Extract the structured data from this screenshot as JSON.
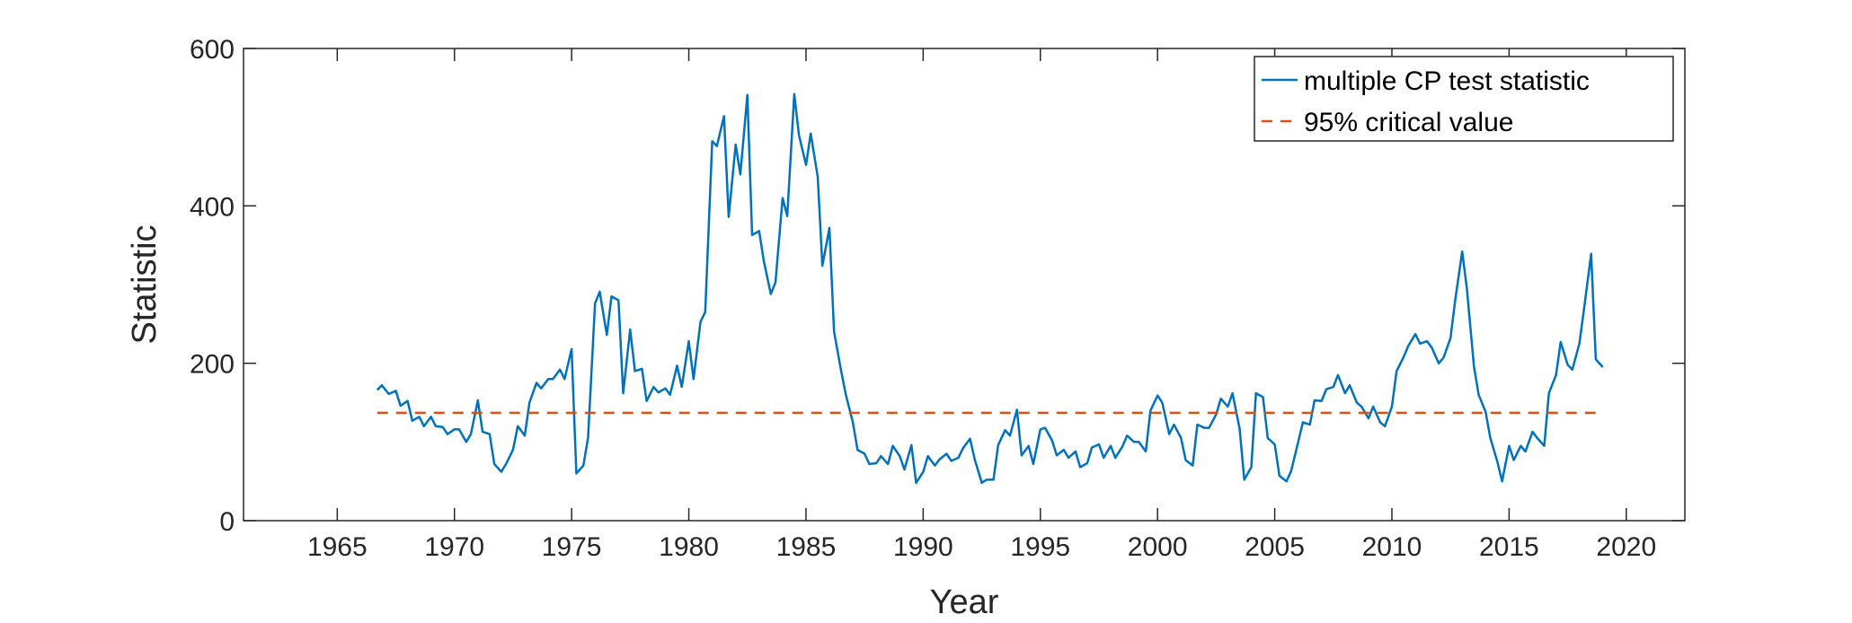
{
  "chart_data": {
    "type": "line",
    "title": "",
    "xlabel": "Year",
    "ylabel": "Statistic",
    "xlim": [
      1961,
      2022.5
    ],
    "ylim": [
      0,
      600
    ],
    "xticks": [
      1965,
      1970,
      1975,
      1980,
      1985,
      1990,
      1995,
      2000,
      2005,
      2010,
      2015,
      2020
    ],
    "yticks": [
      0,
      200,
      400,
      600
    ],
    "grid": false,
    "legend_position": "top-right",
    "series": [
      {
        "name": "multiple CP test statistic",
        "color": "#0072BD",
        "style": "solid",
        "points": [
          [
            1966.7,
            166
          ],
          [
            1966.9,
            172
          ],
          [
            1967.2,
            161
          ],
          [
            1967.5,
            165
          ],
          [
            1967.7,
            146
          ],
          [
            1968.0,
            152
          ],
          [
            1968.2,
            127
          ],
          [
            1968.5,
            132
          ],
          [
            1968.7,
            120
          ],
          [
            1969.0,
            132
          ],
          [
            1969.2,
            120
          ],
          [
            1969.5,
            119
          ],
          [
            1969.7,
            110
          ],
          [
            1970.0,
            116
          ],
          [
            1970.2,
            116
          ],
          [
            1970.5,
            100
          ],
          [
            1970.7,
            110
          ],
          [
            1971.0,
            153
          ],
          [
            1971.2,
            113
          ],
          [
            1971.5,
            110
          ],
          [
            1971.7,
            72
          ],
          [
            1972.0,
            62
          ],
          [
            1972.2,
            72
          ],
          [
            1972.5,
            90
          ],
          [
            1972.7,
            120
          ],
          [
            1973.0,
            108
          ],
          [
            1973.2,
            150
          ],
          [
            1973.5,
            175
          ],
          [
            1973.7,
            168
          ],
          [
            1974.0,
            180
          ],
          [
            1974.2,
            180
          ],
          [
            1974.5,
            192
          ],
          [
            1974.7,
            180
          ],
          [
            1975.0,
            218
          ],
          [
            1975.2,
            60
          ],
          [
            1975.5,
            70
          ],
          [
            1975.7,
            105
          ],
          [
            1976.0,
            276
          ],
          [
            1976.2,
            291
          ],
          [
            1976.5,
            236
          ],
          [
            1976.7,
            285
          ],
          [
            1977.0,
            280
          ],
          [
            1977.2,
            162
          ],
          [
            1977.5,
            243
          ],
          [
            1977.7,
            190
          ],
          [
            1978.0,
            193
          ],
          [
            1978.2,
            152
          ],
          [
            1978.5,
            170
          ],
          [
            1978.7,
            163
          ],
          [
            1979.0,
            168
          ],
          [
            1979.2,
            160
          ],
          [
            1979.5,
            197
          ],
          [
            1979.7,
            170
          ],
          [
            1980.0,
            228
          ],
          [
            1980.2,
            180
          ],
          [
            1980.5,
            253
          ],
          [
            1980.7,
            265
          ],
          [
            1981.0,
            482
          ],
          [
            1981.2,
            476
          ],
          [
            1981.5,
            514
          ],
          [
            1981.7,
            386
          ],
          [
            1982.0,
            478
          ],
          [
            1982.2,
            440
          ],
          [
            1982.5,
            541
          ],
          [
            1982.7,
            363
          ],
          [
            1983.0,
            368
          ],
          [
            1983.2,
            330
          ],
          [
            1983.5,
            288
          ],
          [
            1983.7,
            303
          ],
          [
            1984.0,
            410
          ],
          [
            1984.2,
            387
          ],
          [
            1984.5,
            542
          ],
          [
            1984.7,
            490
          ],
          [
            1985.0,
            452
          ],
          [
            1985.2,
            492
          ],
          [
            1985.5,
            437
          ],
          [
            1985.7,
            324
          ],
          [
            1986.0,
            372
          ],
          [
            1986.2,
            240
          ],
          [
            1986.5,
            190
          ],
          [
            1986.7,
            160
          ],
          [
            1987.0,
            125
          ],
          [
            1987.2,
            90
          ],
          [
            1987.5,
            85
          ],
          [
            1987.7,
            72
          ],
          [
            1988.0,
            73
          ],
          [
            1988.2,
            82
          ],
          [
            1988.5,
            72
          ],
          [
            1988.7,
            95
          ],
          [
            1989.0,
            82
          ],
          [
            1989.2,
            65
          ],
          [
            1989.5,
            96
          ],
          [
            1989.7,
            48
          ],
          [
            1990.0,
            62
          ],
          [
            1990.2,
            82
          ],
          [
            1990.5,
            70
          ],
          [
            1990.7,
            78
          ],
          [
            1991.0,
            85
          ],
          [
            1991.2,
            76
          ],
          [
            1991.5,
            80
          ],
          [
            1991.7,
            92
          ],
          [
            1992.0,
            104
          ],
          [
            1992.2,
            78
          ],
          [
            1992.5,
            48
          ],
          [
            1992.7,
            52
          ],
          [
            1993.0,
            52
          ],
          [
            1993.2,
            96
          ],
          [
            1993.5,
            115
          ],
          [
            1993.7,
            108
          ],
          [
            1994.0,
            141
          ],
          [
            1994.2,
            83
          ],
          [
            1994.5,
            95
          ],
          [
            1994.7,
            72
          ],
          [
            1995.0,
            116
          ],
          [
            1995.2,
            118
          ],
          [
            1995.5,
            102
          ],
          [
            1995.7,
            83
          ],
          [
            1996.0,
            90
          ],
          [
            1996.2,
            80
          ],
          [
            1996.5,
            88
          ],
          [
            1996.7,
            68
          ],
          [
            1997.0,
            73
          ],
          [
            1997.2,
            93
          ],
          [
            1997.5,
            97
          ],
          [
            1997.7,
            80
          ],
          [
            1998.0,
            95
          ],
          [
            1998.2,
            80
          ],
          [
            1998.5,
            94
          ],
          [
            1998.7,
            108
          ],
          [
            1999.0,
            100
          ],
          [
            1999.2,
            100
          ],
          [
            1999.5,
            88
          ],
          [
            1999.7,
            140
          ],
          [
            2000.0,
            159
          ],
          [
            2000.2,
            150
          ],
          [
            2000.5,
            110
          ],
          [
            2000.7,
            122
          ],
          [
            2001.0,
            105
          ],
          [
            2001.2,
            77
          ],
          [
            2001.5,
            70
          ],
          [
            2001.7,
            122
          ],
          [
            2002.0,
            118
          ],
          [
            2002.2,
            118
          ],
          [
            2002.5,
            135
          ],
          [
            2002.7,
            155
          ],
          [
            2003.0,
            145
          ],
          [
            2003.2,
            162
          ],
          [
            2003.5,
            117
          ],
          [
            2003.7,
            52
          ],
          [
            2004.0,
            68
          ],
          [
            2004.2,
            162
          ],
          [
            2004.5,
            157
          ],
          [
            2004.7,
            105
          ],
          [
            2005.0,
            97
          ],
          [
            2005.2,
            57
          ],
          [
            2005.5,
            50
          ],
          [
            2005.7,
            63
          ],
          [
            2006.0,
            100
          ],
          [
            2006.2,
            125
          ],
          [
            2006.5,
            122
          ],
          [
            2006.7,
            153
          ],
          [
            2007.0,
            152
          ],
          [
            2007.2,
            167
          ],
          [
            2007.5,
            170
          ],
          [
            2007.7,
            185
          ],
          [
            2008.0,
            162
          ],
          [
            2008.2,
            172
          ],
          [
            2008.5,
            150
          ],
          [
            2008.7,
            145
          ],
          [
            2009.0,
            130
          ],
          [
            2009.2,
            145
          ],
          [
            2009.5,
            125
          ],
          [
            2009.7,
            120
          ],
          [
            2010.0,
            145
          ],
          [
            2010.2,
            190
          ],
          [
            2010.5,
            208
          ],
          [
            2010.7,
            222
          ],
          [
            2011.0,
            237
          ],
          [
            2011.2,
            225
          ],
          [
            2011.5,
            228
          ],
          [
            2011.7,
            220
          ],
          [
            2012.0,
            200
          ],
          [
            2012.2,
            207
          ],
          [
            2012.5,
            232
          ],
          [
            2012.7,
            280
          ],
          [
            2013.0,
            342
          ],
          [
            2013.2,
            295
          ],
          [
            2013.5,
            196
          ],
          [
            2013.7,
            160
          ],
          [
            2014.0,
            138
          ],
          [
            2014.2,
            105
          ],
          [
            2014.5,
            75
          ],
          [
            2014.7,
            50
          ],
          [
            2015.0,
            95
          ],
          [
            2015.2,
            77
          ],
          [
            2015.5,
            95
          ],
          [
            2015.7,
            88
          ],
          [
            2016.0,
            113
          ],
          [
            2016.2,
            105
          ],
          [
            2016.5,
            95
          ],
          [
            2016.7,
            162
          ],
          [
            2017.0,
            185
          ],
          [
            2017.2,
            227
          ],
          [
            2017.5,
            198
          ],
          [
            2017.7,
            192
          ],
          [
            2018.0,
            225
          ],
          [
            2018.2,
            270
          ],
          [
            2018.5,
            339
          ],
          [
            2018.7,
            205
          ],
          [
            2019.0,
            195
          ]
        ]
      },
      {
        "name": "95% critical value",
        "color": "#D95319",
        "style": "dashed",
        "points": [
          [
            1966.7,
            137
          ],
          [
            2019.0,
            137
          ]
        ]
      }
    ]
  }
}
